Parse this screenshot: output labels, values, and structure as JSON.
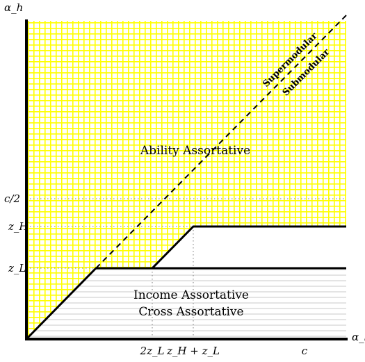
{
  "axes": {
    "x_label": "α_l",
    "y_label": "α_h"
  },
  "x_ticks": {
    "two_zL": "2z_L",
    "zH_plus_zL": "z_H + z_L",
    "c": "c"
  },
  "y_ticks": {
    "c_half": "c/2",
    "zH": "z_H",
    "zL": "z_L"
  },
  "regions": {
    "ability": "Ability Assortative",
    "income": "Income Assortative",
    "cross": "Cross Assortative"
  },
  "diagonal": {
    "upper": "Supermodular",
    "lower": "Submodular"
  },
  "colors": {
    "ability_grid": "#ffff00",
    "income_hatch": "#c8c8c8",
    "boundary": "#000000",
    "guide_dots": "#999999"
  }
}
